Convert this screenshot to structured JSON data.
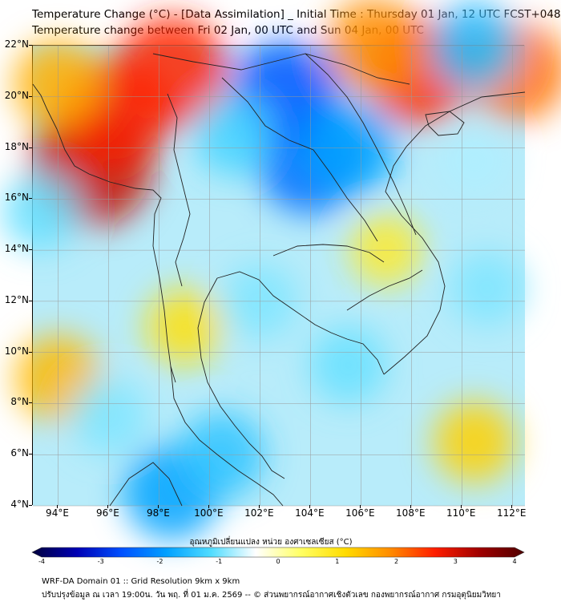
{
  "header": {
    "title_line1": "Temperature Change (°C) - [Data Assimilation] _ Initial Time : Thursday 01 Jan, 12 UTC FCST+048",
    "title_line2": "Temperature change between Fri 02 Jan, 00 UTC and Sun 04 Jan, 00 UTC"
  },
  "map": {
    "lat_range": [
      4,
      22
    ],
    "lon_range": [
      93,
      112.5
    ],
    "lat_labels": [
      "22°N",
      "20°N",
      "18°N",
      "16°N",
      "14°N",
      "12°N",
      "10°N",
      "8°N",
      "6°N",
      "4°N"
    ],
    "lat_values": [
      22,
      20,
      18,
      16,
      14,
      12,
      10,
      8,
      6,
      4
    ],
    "lon_labels": [
      "94°E",
      "96°E",
      "98°E",
      "100°E",
      "102°E",
      "104°E",
      "106°E",
      "108°E",
      "110°E",
      "112°E"
    ],
    "lon_values": [
      94,
      96,
      98,
      100,
      102,
      104,
      106,
      108,
      110,
      112
    ],
    "grid": true,
    "field_blobs": [
      {
        "lon": 95.3,
        "lat": 17.3,
        "value": 3.0
      },
      {
        "lon": 96.2,
        "lat": 19.3,
        "value": 2.6
      },
      {
        "lon": 98.5,
        "lat": 21.0,
        "value": 2.5
      },
      {
        "lon": 94.0,
        "lat": 20.5,
        "value": 1.5
      },
      {
        "lon": 108.3,
        "lat": 21.0,
        "value": 2.4
      },
      {
        "lon": 112.2,
        "lat": 21.0,
        "value": 2.0
      },
      {
        "lon": 106.5,
        "lat": 22.0,
        "value": 1.8
      },
      {
        "lon": 94.0,
        "lat": 9.0,
        "value": 1.4
      },
      {
        "lon": 99.0,
        "lat": 11.0,
        "value": 1.0
      },
      {
        "lon": 107.0,
        "lat": 14.0,
        "value": 0.8
      },
      {
        "lon": 110.5,
        "lat": 6.5,
        "value": 1.2
      },
      {
        "lon": 103.0,
        "lat": 20.0,
        "value": -2.5
      },
      {
        "lon": 104.0,
        "lat": 17.5,
        "value": -2.3
      },
      {
        "lon": 105.5,
        "lat": 18.0,
        "value": -1.8
      },
      {
        "lon": 101.0,
        "lat": 18.5,
        "value": -1.2
      },
      {
        "lon": 98.5,
        "lat": 4.5,
        "value": -1.8
      },
      {
        "lon": 100.5,
        "lat": 6.0,
        "value": -1.4
      },
      {
        "lon": 96.0,
        "lat": 7.5,
        "value": -0.9
      },
      {
        "lon": 105.5,
        "lat": 9.5,
        "value": -1.0
      },
      {
        "lon": 102.0,
        "lat": 12.0,
        "value": -0.9
      },
      {
        "lon": 111.0,
        "lat": 12.5,
        "value": -0.9
      },
      {
        "lon": 110.5,
        "lat": 17.5,
        "value": -0.7
      },
      {
        "lon": 93.3,
        "lat": 15.5,
        "value": -1.0
      },
      {
        "lon": 110.5,
        "lat": 22.0,
        "value": -1.5
      }
    ]
  },
  "colorbar": {
    "label": "อุณหภูมิเปลี่ยนแปลง หน่วย องศาเซลเซียส (°C)",
    "min": -4,
    "max": 4,
    "ticks": [
      "-4",
      "-3",
      "-2",
      "-1",
      "0",
      "1",
      "2",
      "3",
      "4"
    ],
    "tick_values": [
      -4,
      -3,
      -2,
      -1,
      0,
      1,
      2,
      3,
      4
    ],
    "colors": [
      "#00003c",
      "#0000b4",
      "#0050ff",
      "#00a0ff",
      "#50dcff",
      "#ffffff",
      "#ffff64",
      "#ffdc00",
      "#ff8c00",
      "#ff1e00",
      "#a00000",
      "#500000"
    ]
  },
  "footer": {
    "line1": "WRF-DA Domain 01 :: Grid Resolution 9km x 9km",
    "line2": "ปรับปรุงข้อมูล ณ เวลา 19:00น. วัน พฤ. ที่ 01 ม.ค. 2569 -- © ส่วนพยากรณ์อากาศเชิงตัวเลข กองพยากรณ์อากาศ กรมอุตุนิยมวิทยา"
  }
}
